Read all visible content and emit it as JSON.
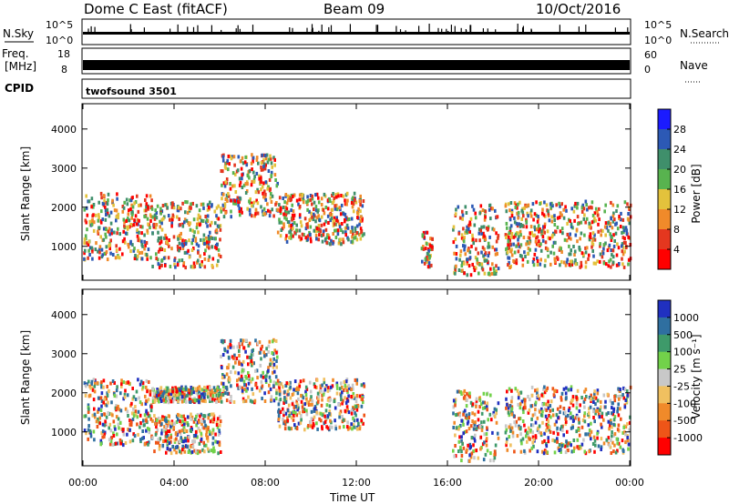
{
  "header": {
    "station": "Dome C East (fitACF)",
    "beam": "Beam 09",
    "date": "10/Oct/2016"
  },
  "aux": {
    "nsky_label": "N.Sky",
    "nsky_ticks": [
      "10^5",
      "10^0"
    ],
    "nsearch_label": "N.Search",
    "nsearch_ticks": [
      "10^5",
      "10^0"
    ],
    "freq_label": "Freq.",
    "freq_unit": "[MHz]",
    "freq_ticks": [
      "18",
      "8"
    ],
    "nave_label": "Nave",
    "nave_ticks": [
      "60",
      "0"
    ],
    "cpid_label": "CPID",
    "cpid_value": "twofsound 3501"
  },
  "x_axis": {
    "label": "Time UT",
    "ticks": [
      "00:00",
      "04:00",
      "08:00",
      "12:00",
      "16:00",
      "20:00",
      "00:00"
    ]
  },
  "chart_data": [
    {
      "type": "heatmap",
      "name": "power",
      "ylabel": "Slant Range [km]",
      "x": "time UT, 00:00 to 24:00",
      "xlim": [
        0,
        24
      ],
      "ylim": [
        180,
        4600
      ],
      "yticks": [
        "1000",
        "2000",
        "3000",
        "4000"
      ],
      "colorbar": {
        "label": "Power [dB]",
        "ticks": [
          "4",
          "8",
          "12",
          "16",
          "20",
          "24",
          "28"
        ],
        "colors": [
          "#1b1bff",
          "#2c59b5",
          "#3f8f6b",
          "#58b34f",
          "#e3c23c",
          "#f08a2a",
          "#e4371f",
          "#ff0000"
        ]
      },
      "regions": [
        {
          "t": [
            0.0,
            3.0
          ],
          "r": [
            700,
            2400
          ],
          "level": "mixed, 8-24 dB"
        },
        {
          "t": [
            3.0,
            6.0
          ],
          "r": [
            500,
            2200
          ],
          "level": "mixed, 8-20 dB"
        },
        {
          "t": [
            6.0,
            8.5
          ],
          "r": [
            1800,
            3400
          ],
          "level": "mixed, 12-24 dB"
        },
        {
          "t": [
            8.5,
            12.3
          ],
          "r": [
            1100,
            2400
          ],
          "level": "mixed, 16-28 dB"
        },
        {
          "t": [
            14.8,
            15.3
          ],
          "r": [
            500,
            1400
          ],
          "level": "weak, 4-12 dB"
        },
        {
          "t": [
            16.2,
            18.2
          ],
          "r": [
            300,
            2100
          ],
          "level": "strong, 20-28 dB"
        },
        {
          "t": [
            18.5,
            24.0
          ],
          "r": [
            500,
            2200
          ],
          "level": "mixed, 12-28 dB"
        }
      ]
    },
    {
      "type": "heatmap",
      "name": "velocity",
      "ylabel": "Slant Range [km]",
      "x": "time UT, 00:00 to 24:00",
      "xlim": [
        0,
        24
      ],
      "ylim": [
        180,
        4600
      ],
      "yticks": [
        "1000",
        "2000",
        "3000",
        "4000"
      ],
      "colorbar": {
        "label": "Velocity [m s⁻¹]",
        "ticks": [
          "1000",
          "500",
          "100",
          "25",
          "-25",
          "-100",
          "-500",
          "-1000"
        ],
        "colors": [
          "#2030c0",
          "#2f6fa0",
          "#3e9a6a",
          "#72d24a",
          "#c8c8c8",
          "#f0c060",
          "#f08a2a",
          "#ee5518",
          "#ff0000"
        ]
      },
      "regions": [
        {
          "t": [
            0.0,
            3.0
          ],
          "r": [
            700,
            2400
          ],
          "level": "orange/green, -100 to 100 m/s"
        },
        {
          "t": [
            3.0,
            6.0
          ],
          "r": [
            1800,
            2200
          ],
          "level": "grey, -25 to 25 m/s"
        },
        {
          "t": [
            3.0,
            6.0
          ],
          "r": [
            500,
            1500
          ],
          "level": "orange, -500 to -100 m/s"
        },
        {
          "t": [
            6.0,
            8.5
          ],
          "r": [
            1800,
            3400
          ],
          "level": "orange, -500 to -100 m/s"
        },
        {
          "t": [
            8.5,
            12.3
          ],
          "r": [
            1100,
            2400
          ],
          "level": "orange/green"
        },
        {
          "t": [
            16.2,
            18.2
          ],
          "r": [
            300,
            2100
          ],
          "level": "green/blue, 100 to 500 m/s"
        },
        {
          "t": [
            18.5,
            24.0
          ],
          "r": [
            500,
            2200
          ],
          "level": "green/blue, 100 to 1000 m/s"
        }
      ]
    }
  ]
}
